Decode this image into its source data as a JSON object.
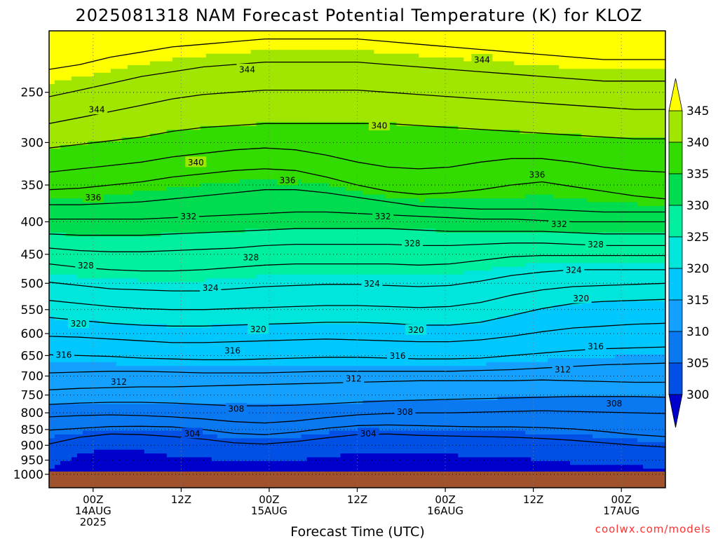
{
  "chart_data": {
    "type": "heatmap",
    "title": "2025081318 NAM Forecast Potential Temperature (K) for KLOZ",
    "xlabel": "Forecast Time (UTC)",
    "ylabel": "",
    "credit": "coolwx.com/models",
    "y_axis": {
      "quantity": "pressure (hPa)",
      "scale": "log",
      "inverted": true,
      "range": [
        200,
        1050
      ],
      "ticks": [
        250,
        300,
        350,
        400,
        450,
        500,
        550,
        600,
        650,
        700,
        750,
        800,
        850,
        900,
        950,
        1000
      ],
      "tick_labels": [
        "250",
        "300",
        "350",
        "400",
        "450",
        "500",
        "550",
        "600",
        "650",
        "700",
        "750",
        "800",
        "850",
        "900",
        "950",
        "1000"
      ]
    },
    "x_axis": {
      "quantity": "forecast hour",
      "range": [
        0,
        84
      ],
      "ticks": [
        {
          "hour": 6,
          "lines": [
            "00Z",
            "14AUG",
            "2025"
          ]
        },
        {
          "hour": 18,
          "lines": [
            "12Z"
          ]
        },
        {
          "hour": 30,
          "lines": [
            "00Z",
            "15AUG"
          ]
        },
        {
          "hour": 42,
          "lines": [
            "12Z"
          ]
        },
        {
          "hour": 54,
          "lines": [
            "00Z",
            "16AUG"
          ]
        },
        {
          "hour": 66,
          "lines": [
            "12Z"
          ]
        },
        {
          "hour": 78,
          "lines": [
            "00Z",
            "17AUG"
          ]
        }
      ]
    },
    "grid": true,
    "colorbar": {
      "position": "right",
      "levels": [
        300,
        305,
        310,
        315,
        320,
        325,
        330,
        335,
        340,
        345
      ],
      "labels": [
        "300",
        "305",
        "310",
        "315",
        "320",
        "325",
        "330",
        "335",
        "340",
        "345"
      ],
      "colors": [
        "#0000cd",
        "#0050e6",
        "#0a78f0",
        "#14a0ff",
        "#00c8ff",
        "#00e6dc",
        "#00f0a0",
        "#00dc50",
        "#32dc00",
        "#a0e600",
        "#ffff00"
      ],
      "extend": "both"
    },
    "surface": {
      "pressure": 990,
      "color": "#a0522d"
    },
    "contour_interval": 2,
    "contours": [
      {
        "theta": 304,
        "pressure": [
          896,
          874,
          864,
          866,
          872,
          880,
          892,
          896,
          888,
          876,
          866,
          864,
          868,
          870,
          872,
          874,
          878,
          884,
          892,
          900,
          906
        ]
      },
      {
        "theta": 306,
        "pressure": [
          852,
          846,
          841,
          840,
          842,
          850,
          862,
          866,
          858,
          846,
          838,
          836,
          838,
          840,
          842,
          842,
          844,
          848,
          856,
          866,
          872
        ]
      },
      {
        "theta": 308,
        "pressure": [
          812,
          808,
          806,
          808,
          812,
          818,
          826,
          830,
          824,
          814,
          806,
          802,
          800,
          800,
          798,
          796,
          794,
          796,
          798,
          800,
          802
        ]
      },
      {
        "theta": 310,
        "pressure": [
          776,
          772,
          770,
          770,
          772,
          776,
          780,
          780,
          778,
          774,
          770,
          766,
          764,
          762,
          760,
          758,
          756,
          754,
          754,
          754,
          756
        ]
      },
      {
        "theta": 312,
        "pressure": [
          736,
          732,
          730,
          728,
          728,
          726,
          724,
          722,
          720,
          718,
          716,
          714,
          712,
          712,
          712,
          712,
          710,
          712,
          714,
          716,
          716
        ]
      },
      {
        "theta": 314,
        "pressure": [
          692,
          690,
          688,
          688,
          690,
          692,
          692,
          692,
          690,
          688,
          688,
          688,
          688,
          688,
          686,
          684,
          680,
          676,
          672,
          670,
          668
        ]
      },
      {
        "theta": 316,
        "pressure": [
          648,
          650,
          652,
          656,
          658,
          660,
          660,
          658,
          656,
          654,
          654,
          656,
          658,
          658,
          656,
          650,
          644,
          638,
          634,
          632,
          630
        ]
      },
      {
        "theta": 318,
        "pressure": [
          606,
          608,
          612,
          616,
          620,
          620,
          618,
          616,
          614,
          612,
          614,
          616,
          618,
          618,
          614,
          606,
          596,
          588,
          584,
          580,
          578
        ]
      },
      {
        "theta": 320,
        "pressure": [
          566,
          572,
          578,
          582,
          584,
          584,
          582,
          580,
          578,
          576,
          576,
          578,
          582,
          582,
          576,
          562,
          548,
          538,
          534,
          532,
          530
        ]
      },
      {
        "theta": 322,
        "pressure": [
          532,
          538,
          544,
          548,
          550,
          550,
          548,
          546,
          544,
          542,
          542,
          544,
          546,
          544,
          536,
          522,
          512,
          506,
          504,
          502,
          500
        ]
      },
      {
        "theta": 324,
        "pressure": [
          498,
          504,
          510,
          512,
          514,
          514,
          510,
          506,
          504,
          502,
          502,
          504,
          506,
          504,
          496,
          486,
          480,
          476,
          476,
          476,
          476
        ]
      },
      {
        "theta": 326,
        "pressure": [
          466,
          472,
          476,
          478,
          478,
          476,
          472,
          468,
          466,
          466,
          466,
          466,
          468,
          466,
          460,
          454,
          452,
          452,
          452,
          452,
          452
        ]
      },
      {
        "theta": 328,
        "pressure": [
          440,
          444,
          446,
          446,
          444,
          442,
          440,
          436,
          434,
          434,
          434,
          434,
          436,
          436,
          434,
          432,
          432,
          434,
          436,
          436,
          436
        ]
      },
      {
        "theta": 330,
        "pressure": [
          418,
          420,
          420,
          420,
          418,
          416,
          414,
          412,
          410,
          410,
          410,
          410,
          412,
          414,
          414,
          414,
          414,
          416,
          418,
          418,
          418
        ]
      },
      {
        "theta": 332,
        "pressure": [
          396,
          396,
          396,
          396,
          394,
          392,
          390,
          388,
          386,
          386,
          388,
          390,
          392,
          394,
          396,
          396,
          398,
          400,
          400,
          400,
          400
        ]
      },
      {
        "theta": 334,
        "pressure": [
          376,
          376,
          374,
          372,
          368,
          364,
          360,
          356,
          356,
          360,
          366,
          372,
          378,
          380,
          382,
          382,
          382,
          384,
          386,
          386,
          386
        ]
      },
      {
        "theta": 336,
        "pressure": [
          356,
          354,
          350,
          346,
          340,
          336,
          332,
          330,
          332,
          340,
          350,
          358,
          362,
          360,
          356,
          350,
          346,
          352,
          358,
          364,
          368
        ]
      },
      {
        "theta": 338,
        "pressure": [
          334,
          330,
          326,
          322,
          316,
          312,
          308,
          306,
          308,
          314,
          322,
          328,
          330,
          328,
          322,
          318,
          318,
          322,
          328,
          332,
          334
        ]
      },
      {
        "theta": 340,
        "pressure": [
          306,
          302,
          298,
          294,
          288,
          284,
          282,
          280,
          280,
          280,
          280,
          280,
          282,
          284,
          286,
          288,
          290,
          292,
          294,
          296,
          296
        ]
      },
      {
        "theta": 342,
        "pressure": [
          280,
          274,
          268,
          262,
          256,
          252,
          250,
          248,
          248,
          248,
          248,
          250,
          252,
          254,
          256,
          258,
          260,
          262,
          264,
          266,
          266
        ]
      },
      {
        "theta": 344,
        "pressure": [
          254,
          248,
          242,
          236,
          232,
          228,
          226,
          224,
          224,
          224,
          224,
          226,
          228,
          230,
          232,
          234,
          236,
          238,
          240,
          240,
          240
        ]
      },
      {
        "theta": 346,
        "pressure": [
          230,
          226,
          220,
          216,
          212,
          210,
          208,
          206,
          206,
          206,
          206,
          208,
          210,
          212,
          214,
          216,
          218,
          220,
          222,
          222,
          222
        ]
      }
    ],
    "contour_hours": [
      0,
      4.2,
      8.4,
      12.6,
      16.8,
      21,
      25.2,
      29.4,
      33.6,
      37.8,
      42,
      46.2,
      50.4,
      54.6,
      58.8,
      63,
      67.2,
      71.4,
      75.6,
      79.8,
      84
    ],
    "contour_labels": [
      {
        "value": "304",
        "hour": 19.5,
        "pressure": 862
      },
      {
        "value": "304",
        "hour": 43.5,
        "pressure": 862
      },
      {
        "value": "308",
        "hour": 25.5,
        "pressure": 788
      },
      {
        "value": "308",
        "hour": 48.5,
        "pressure": 797
      },
      {
        "value": "308",
        "hour": 77,
        "pressure": 773
      },
      {
        "value": "312",
        "hour": 9.5,
        "pressure": 714
      },
      {
        "value": "312",
        "hour": 41.5,
        "pressure": 706
      },
      {
        "value": "312",
        "hour": 70,
        "pressure": 683
      },
      {
        "value": "316",
        "hour": 2,
        "pressure": 648
      },
      {
        "value": "316",
        "hour": 25,
        "pressure": 638
      },
      {
        "value": "316",
        "hour": 47.5,
        "pressure": 650
      },
      {
        "value": "316",
        "hour": 74.5,
        "pressure": 628
      },
      {
        "value": "320",
        "hour": 4,
        "pressure": 578
      },
      {
        "value": "320",
        "hour": 28.5,
        "pressure": 590
      },
      {
        "value": "320",
        "hour": 50,
        "pressure": 592
      },
      {
        "value": "320",
        "hour": 72.5,
        "pressure": 528
      },
      {
        "value": "324",
        "hour": 22,
        "pressure": 508
      },
      {
        "value": "324",
        "hour": 44,
        "pressure": 500
      },
      {
        "value": "324",
        "hour": 71.5,
        "pressure": 476
      },
      {
        "value": "328",
        "hour": 5,
        "pressure": 468
      },
      {
        "value": "328",
        "hour": 27.5,
        "pressure": 455
      },
      {
        "value": "328",
        "hour": 49.5,
        "pressure": 432
      },
      {
        "value": "328",
        "hour": 74.5,
        "pressure": 434
      },
      {
        "value": "332",
        "hour": 19,
        "pressure": 392
      },
      {
        "value": "332",
        "hour": 45.5,
        "pressure": 392
      },
      {
        "value": "332",
        "hour": 69.5,
        "pressure": 403
      },
      {
        "value": "336",
        "hour": 6,
        "pressure": 366
      },
      {
        "value": "336",
        "hour": 32.5,
        "pressure": 344
      },
      {
        "value": "336",
        "hour": 66.5,
        "pressure": 337
      },
      {
        "value": "340",
        "hour": 20,
        "pressure": 322
      },
      {
        "value": "340",
        "hour": 45,
        "pressure": 282
      },
      {
        "value": "344",
        "hour": 6.5,
        "pressure": 266
      },
      {
        "value": "344",
        "hour": 27,
        "pressure": 230
      },
      {
        "value": "344",
        "hour": 59,
        "pressure": 222
      }
    ]
  }
}
